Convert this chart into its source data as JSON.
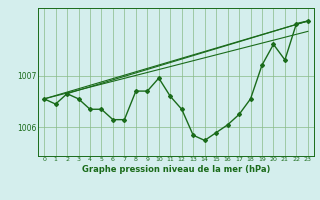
{
  "title": "Graphe pression niveau de la mer (hPa)",
  "bg_color": "#d4eeed",
  "grid_color": "#88bb88",
  "line_color": "#1a6b1a",
  "main_data": [
    1006.55,
    1006.45,
    1006.65,
    1006.55,
    1006.35,
    1006.35,
    1006.15,
    1006.15,
    1006.7,
    1006.7,
    1006.95,
    1006.6,
    1006.35,
    1005.85,
    1005.75,
    1005.9,
    1006.05,
    1006.25,
    1006.55,
    1007.2,
    1007.6,
    1007.3,
    1008.0,
    1008.05
  ],
  "x_labels": [
    "0",
    "1",
    "2",
    "3",
    "4",
    "5",
    "6",
    "7",
    "8",
    "9",
    "10",
    "11",
    "12",
    "13",
    "14",
    "15",
    "16",
    "17",
    "18",
    "19",
    "20",
    "21",
    "22",
    "23"
  ],
  "yticks": [
    1006.0,
    1007.0
  ],
  "ylim": [
    1005.45,
    1008.3
  ],
  "xlim": [
    -0.5,
    23.5
  ],
  "trend_line1": [
    [
      0,
      23
    ],
    [
      1006.55,
      1008.05
    ]
  ],
  "trend_line2": [
    [
      0,
      23
    ],
    [
      1006.55,
      1007.85
    ]
  ],
  "trend_line3": [
    [
      2,
      23
    ],
    [
      1006.65,
      1008.05
    ]
  ]
}
